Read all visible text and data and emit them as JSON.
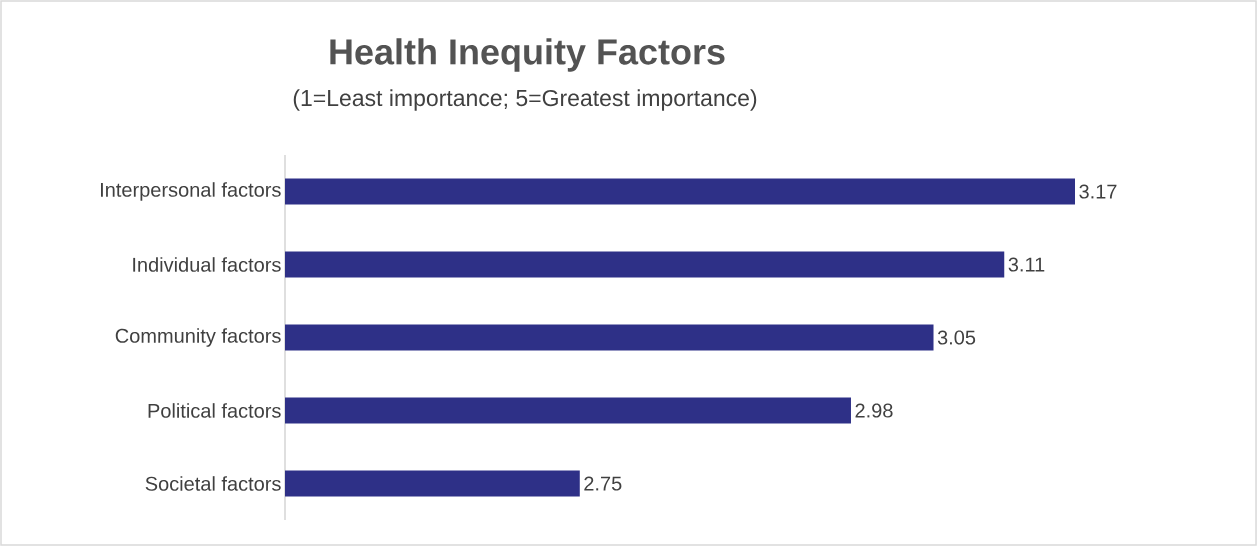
{
  "chart_data": {
    "type": "bar",
    "orientation": "horizontal",
    "title": "Health Inequity Factors",
    "subtitle": "(1=Least importance; 5=Greatest importance)",
    "categories": [
      "Interpersonal factors",
      "Individual factors",
      "Community factors",
      "Political factors",
      "Societal factors"
    ],
    "values": [
      3.17,
      3.11,
      3.05,
      2.98,
      2.75
    ],
    "color": "#2e3087",
    "data_labels": true,
    "xlim": [
      2.5,
      3.17
    ],
    "tick_labels": "y"
  }
}
